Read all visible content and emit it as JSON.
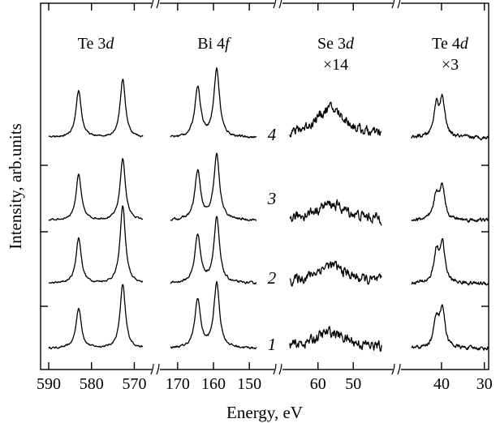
{
  "chart_data": {
    "type": "line",
    "xlabel": "Energy, eV",
    "ylabel": "Intensity, arb.units",
    "x_reversed": true,
    "broken_axis": true,
    "panels": [
      {
        "id": "te3d",
        "title": [
          "Te 3",
          "d",
          ""
        ],
        "xlim": [
          590,
          568
        ],
        "ticks": [
          590,
          580,
          570
        ],
        "peaks": [
          {
            "center": 583.0,
            "width": 0.75
          },
          {
            "center": 572.7,
            "width": 0.75
          }
        ],
        "heights": [
          [
            0.62,
            0.98
          ],
          [
            0.7,
            1.2
          ],
          [
            0.7,
            0.95
          ],
          [
            0.72,
            0.9
          ]
        ],
        "noise": 0.025
      },
      {
        "id": "bi4f",
        "title": [
          "Bi 4",
          "f",
          ""
        ],
        "xlim": [
          172,
          148
        ],
        "ticks": [
          170,
          160,
          150
        ],
        "peaks": [
          {
            "center": 164.4,
            "width": 0.95
          },
          {
            "center": 159.1,
            "width": 0.95
          }
        ],
        "heights": [
          [
            0.75,
            1.0
          ],
          [
            0.75,
            1.0
          ],
          [
            0.75,
            1.0
          ],
          [
            0.78,
            1.05
          ]
        ],
        "noise": 0.03
      },
      {
        "id": "se3d",
        "title": [
          "Se 3",
          "d",
          ""
        ],
        "title2": "×14",
        "xlim": [
          68,
          42
        ],
        "ticks": [
          60,
          50
        ],
        "peaks": [
          {
            "center": 56.5,
            "width": 5.5
          }
        ],
        "heights": [
          [
            0.25
          ],
          [
            0.28
          ],
          [
            0.25
          ],
          [
            0.45
          ]
        ],
        "noise": 0.14
      },
      {
        "id": "te4d",
        "title": [
          "Te 4",
          "d",
          ""
        ],
        "title2": "×3",
        "xlim": [
          47,
          29
        ],
        "ticks": [
          40,
          30
        ],
        "peaks": [
          {
            "center": 41.2,
            "width": 0.7
          },
          {
            "center": 39.8,
            "width": 0.7
          }
        ],
        "heights": [
          [
            0.45,
            0.6
          ],
          [
            0.45,
            0.6
          ],
          [
            0.38,
            0.5
          ],
          [
            0.48,
            0.56
          ]
        ],
        "noise": 0.05
      }
    ],
    "curve_labels": [
      "1",
      "2",
      "3",
      "4"
    ],
    "x_tick_labels": [
      "590",
      "580",
      "570",
      "170",
      "160",
      "150",
      "60",
      "50",
      "40",
      "30"
    ],
    "grid": false,
    "legend": "none"
  }
}
